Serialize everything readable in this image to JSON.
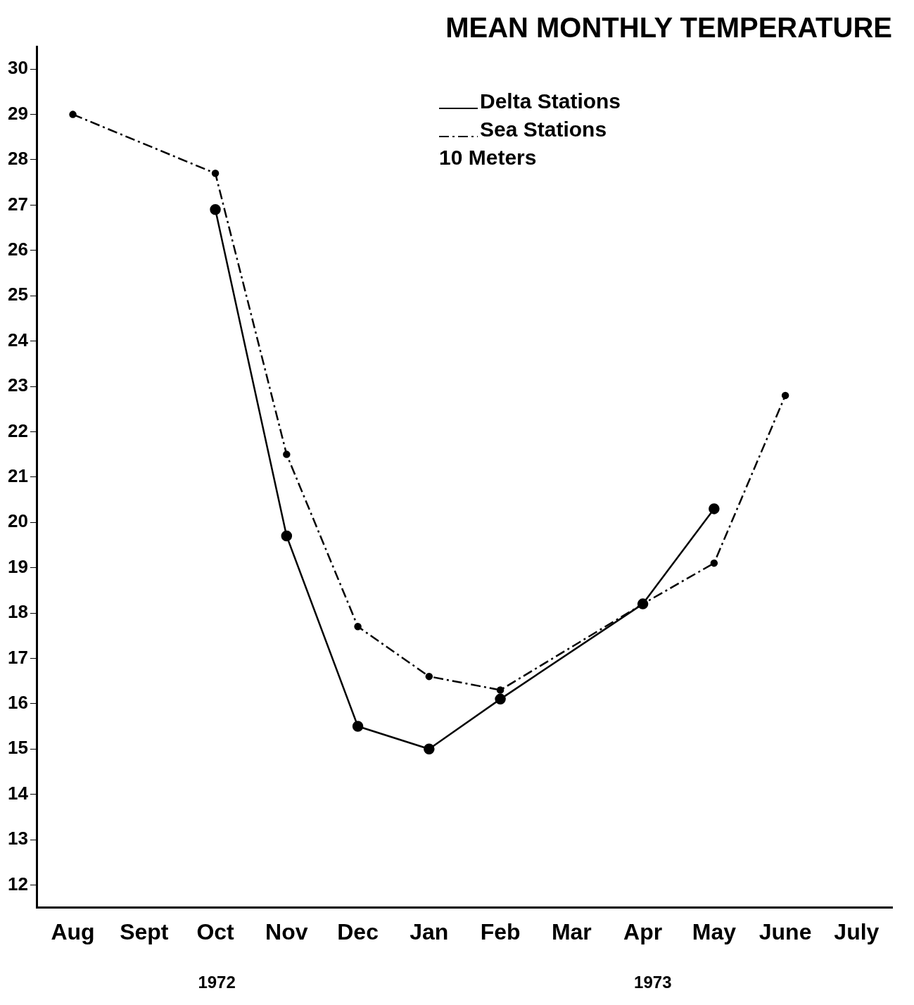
{
  "chart_data": {
    "type": "line",
    "title": "MEAN MONTHLY TEMPERATURE",
    "categories": [
      "Aug",
      "Sept",
      "Oct",
      "Nov",
      "Dec",
      "Jan",
      "Feb",
      "Mar",
      "Apr",
      "May",
      "June",
      "July"
    ],
    "series": [
      {
        "name": "Delta Stations",
        "color": "#000000",
        "line_style": "solid",
        "values": [
          null,
          null,
          26.9,
          19.7,
          15.5,
          15.0,
          16.1,
          null,
          18.2,
          20.3,
          null,
          null
        ]
      },
      {
        "name": "Sea Stations",
        "color": "#000000",
        "line_style": "dashed",
        "values": [
          29.0,
          null,
          27.7,
          21.5,
          17.7,
          16.6,
          16.3,
          null,
          18.2,
          19.1,
          22.8,
          null
        ]
      }
    ],
    "ylim": [
      11.5,
      30.5
    ],
    "yticks": [
      12,
      13,
      14,
      15,
      16,
      17,
      18,
      19,
      20,
      21,
      22,
      23,
      24,
      25,
      26,
      27,
      28,
      29,
      30
    ],
    "grid": false,
    "legend": "top",
    "marker": "circle",
    "annotations": [
      "10 Meters",
      "1972",
      "1973"
    ]
  }
}
